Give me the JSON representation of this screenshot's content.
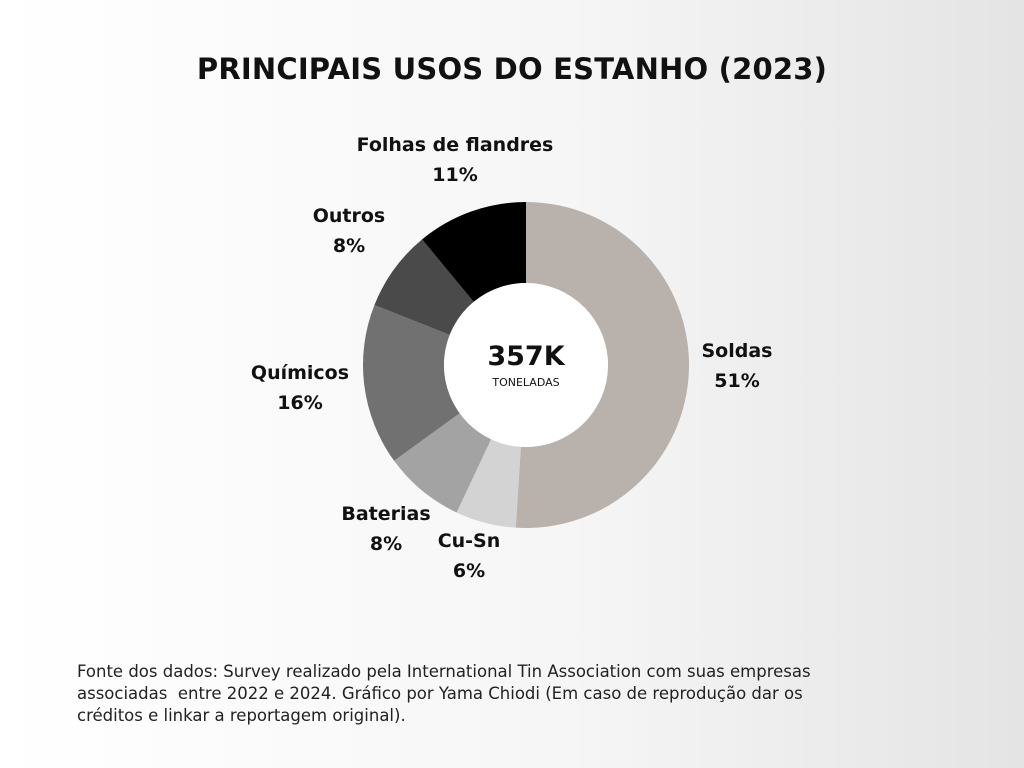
{
  "chart_data": {
    "type": "pie",
    "style": "donut",
    "title": "PRINCIPAIS USOS DO ESTANHO (2023)",
    "center_value": "357K",
    "center_label": "TONELADAS",
    "slices": [
      {
        "label": "Soldas",
        "value_label": "51%",
        "value": 51,
        "color": "#b9b1ab"
      },
      {
        "label": "Cu-Sn",
        "value_label": "6%",
        "value": 6,
        "color": "#d3d3d3"
      },
      {
        "label": "Baterias",
        "value_label": "8%",
        "value": 8,
        "color": "#a3a3a3"
      },
      {
        "label": "Químicos",
        "value_label": "16%",
        "value": 16,
        "color": "#717171"
      },
      {
        "label": "Outros",
        "value_label": "8%",
        "value": 8,
        "color": "#4a4a4a"
      },
      {
        "label": "Folhas de flandres",
        "value_label": "11%",
        "value": 11,
        "color": "#000000"
      }
    ]
  },
  "source": {
    "line1": "Fonte dos dados: Survey realizado pela International Tin Association com suas empresas",
    "line2": "associadas  entre 2022 e 2024. Gráfico por Yama Chiodi (Em caso de reprodução dar os",
    "line3": "créditos e linkar a reportagem original)."
  }
}
